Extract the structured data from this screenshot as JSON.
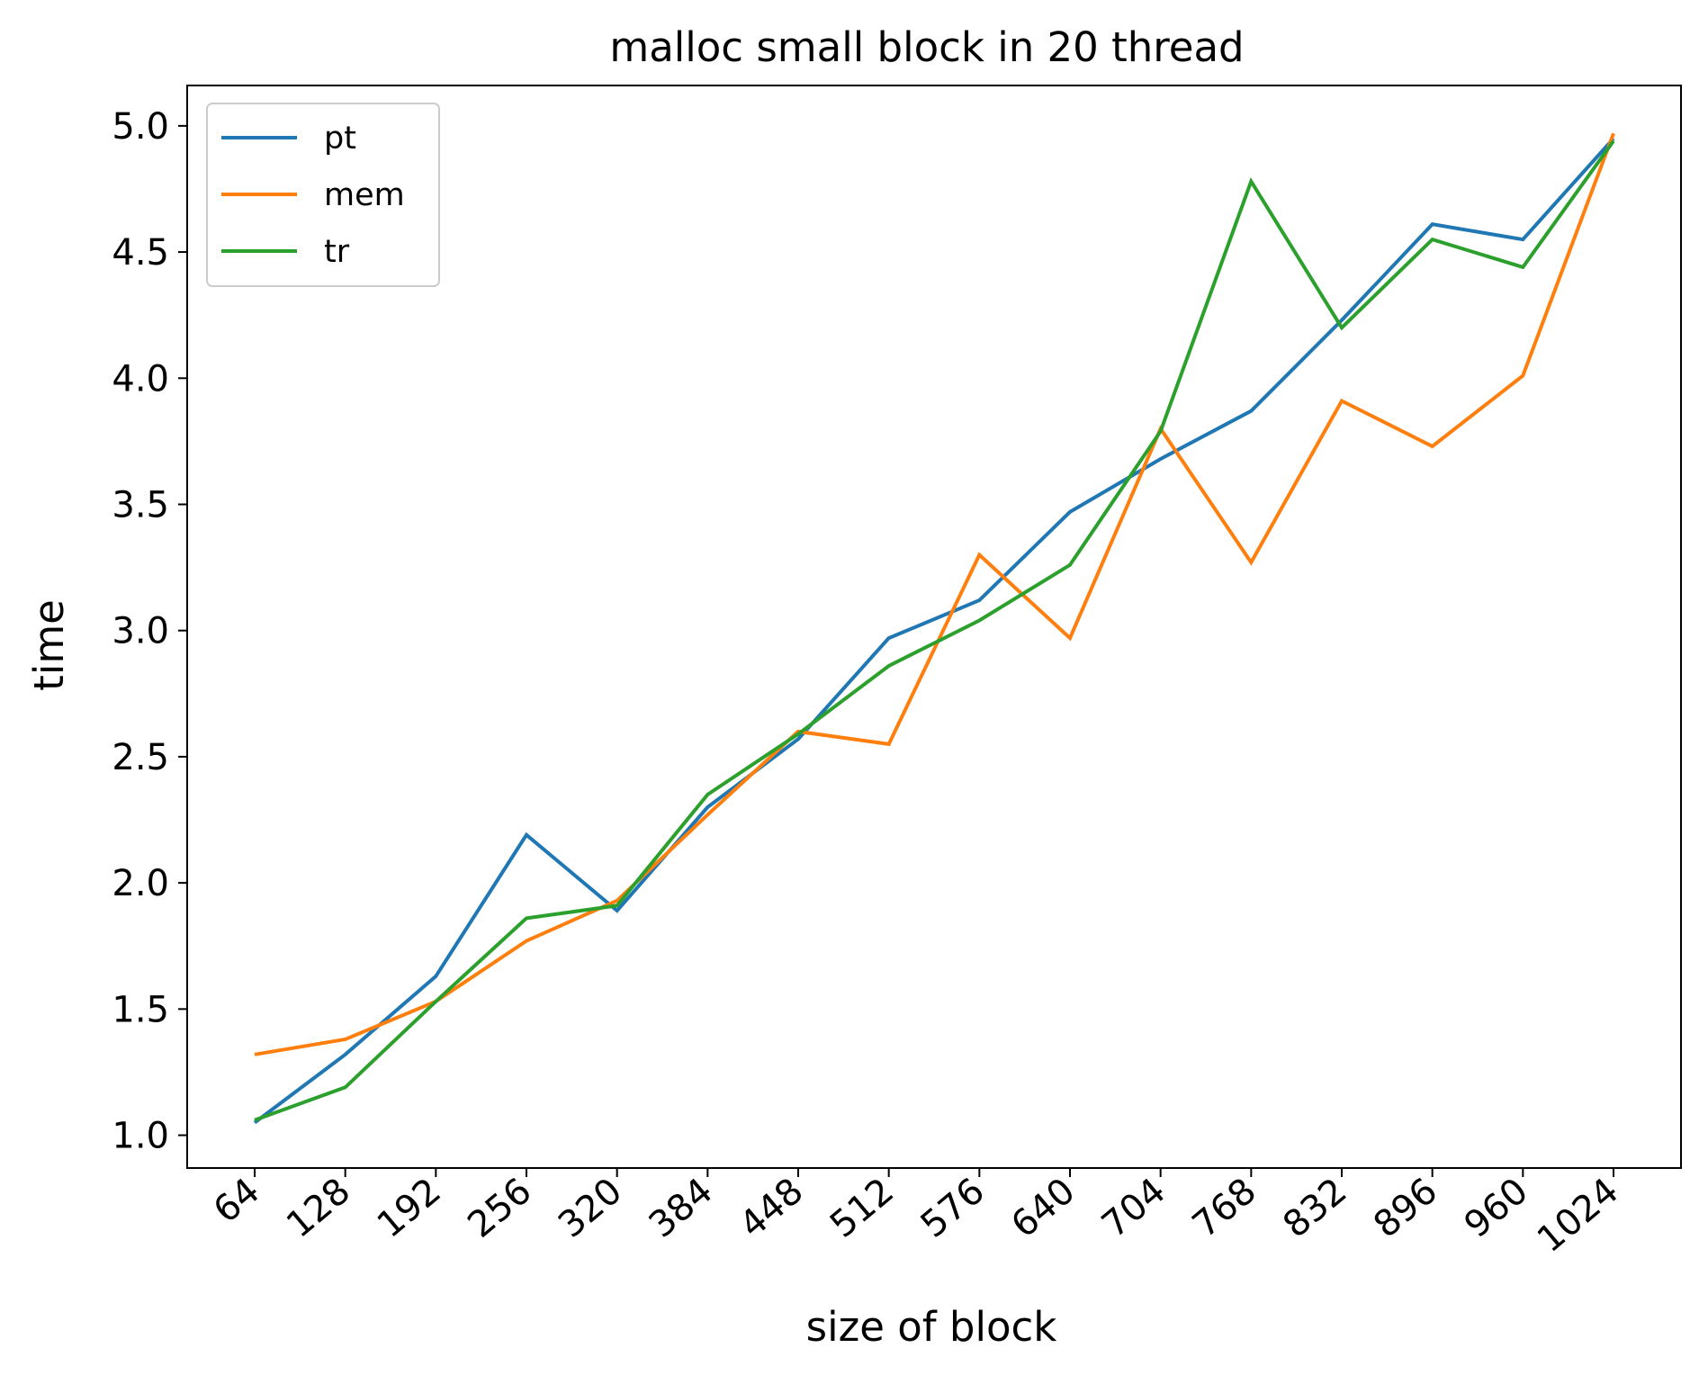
{
  "chart_data": {
    "type": "line",
    "title": "malloc small block in 20 thread",
    "xlabel": "size of block",
    "ylabel": "time",
    "categories": [
      "64",
      "128",
      "192",
      "256",
      "320",
      "384",
      "448",
      "512",
      "576",
      "640",
      "704",
      "768",
      "832",
      "896",
      "960",
      "1024"
    ],
    "yticks": [
      "1.0",
      "1.5",
      "2.0",
      "2.5",
      "3.0",
      "3.5",
      "4.0",
      "4.5",
      "5.0"
    ],
    "ylim": [
      0.87,
      5.16
    ],
    "grid": false,
    "legend_position": "top-left",
    "series": [
      {
        "name": "pt",
        "color": "#1f77b4",
        "values": [
          1.05,
          1.32,
          1.63,
          2.19,
          1.89,
          2.3,
          2.57,
          2.97,
          3.12,
          3.47,
          3.68,
          3.87,
          4.23,
          4.61,
          4.55,
          4.95
        ]
      },
      {
        "name": "mem",
        "color": "#ff7f0e",
        "values": [
          1.32,
          1.38,
          1.53,
          1.77,
          1.93,
          2.27,
          2.6,
          2.55,
          3.3,
          2.97,
          3.8,
          3.27,
          3.91,
          3.73,
          4.01,
          4.97
        ]
      },
      {
        "name": "tr",
        "color": "#2ca02c",
        "values": [
          1.06,
          1.19,
          1.53,
          1.86,
          1.91,
          2.35,
          2.59,
          2.86,
          3.04,
          3.26,
          3.79,
          4.78,
          4.2,
          4.55,
          4.44,
          4.94
        ]
      }
    ]
  }
}
